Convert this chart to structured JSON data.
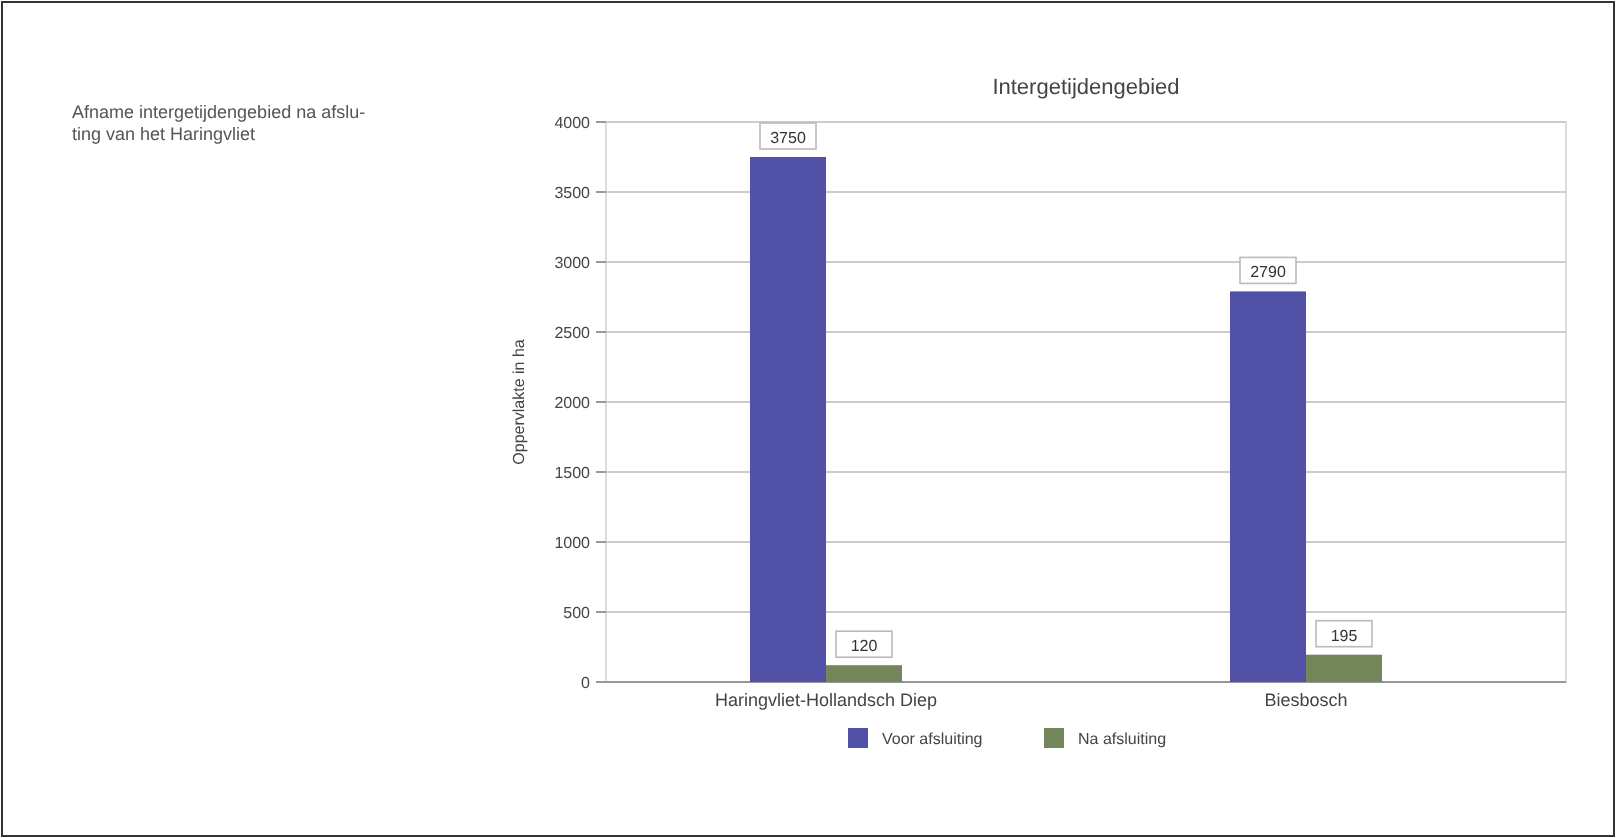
{
  "chart_data": {
    "type": "bar",
    "title": "Intergetijdengebied",
    "ylabel": "Oppervlakte in ha",
    "annotations": [
      "Afname intergetijdengebied na afslu-ting van het Haringvliet"
    ],
    "categories": [
      "Haringvliet-Hollandsch Diep",
      "Biesbosch"
    ],
    "series": [
      {
        "name": "Voor afsluiting",
        "color": "#5151a8",
        "values": [
          3750,
          2790
        ]
      },
      {
        "name": "Na afsluiting",
        "color": "#74875a",
        "values": [
          120,
          195
        ]
      }
    ],
    "ylim": [
      0,
      4000
    ],
    "yticks": [
      0,
      500,
      1000,
      1500,
      2000,
      2500,
      3000,
      3500,
      4000
    ],
    "grid": "y",
    "legend": "bottom",
    "data_labels": true
  }
}
